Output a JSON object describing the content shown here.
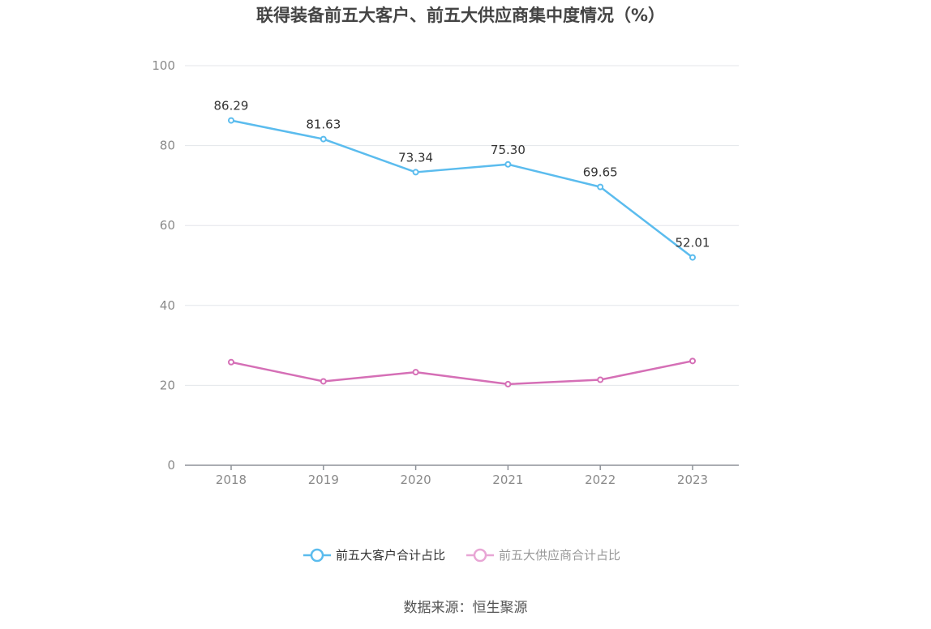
{
  "chart_data": {
    "type": "line",
    "title": "联得装备前五大客户、前五大供应商集中度情况（%）",
    "categories": [
      "2018",
      "2019",
      "2020",
      "2021",
      "2022",
      "2023"
    ],
    "ylim": [
      0,
      100
    ],
    "yticks": [
      0,
      20,
      40,
      60,
      80,
      100
    ],
    "grid": true,
    "legend_position": "bottom-center",
    "series": [
      {
        "name": "前五大客户合计占比",
        "color": "#5bbcee",
        "values": [
          86.29,
          81.63,
          73.34,
          75.3,
          69.65,
          52.01
        ],
        "labels": [
          "86.29",
          "81.63",
          "73.34",
          "75.30",
          "69.65",
          "52.01"
        ],
        "show_labels": true,
        "legend_text_color": "#333333"
      },
      {
        "name": "前五大供应商合计占比",
        "color": "#d56fb6",
        "legend_color": "#e8a6d5",
        "values": [
          25.8,
          21.0,
          23.3,
          20.3,
          21.4,
          26.1
        ],
        "show_labels": false,
        "legend_text_color": "#999999"
      }
    ]
  },
  "source": "数据来源：恒生聚源"
}
